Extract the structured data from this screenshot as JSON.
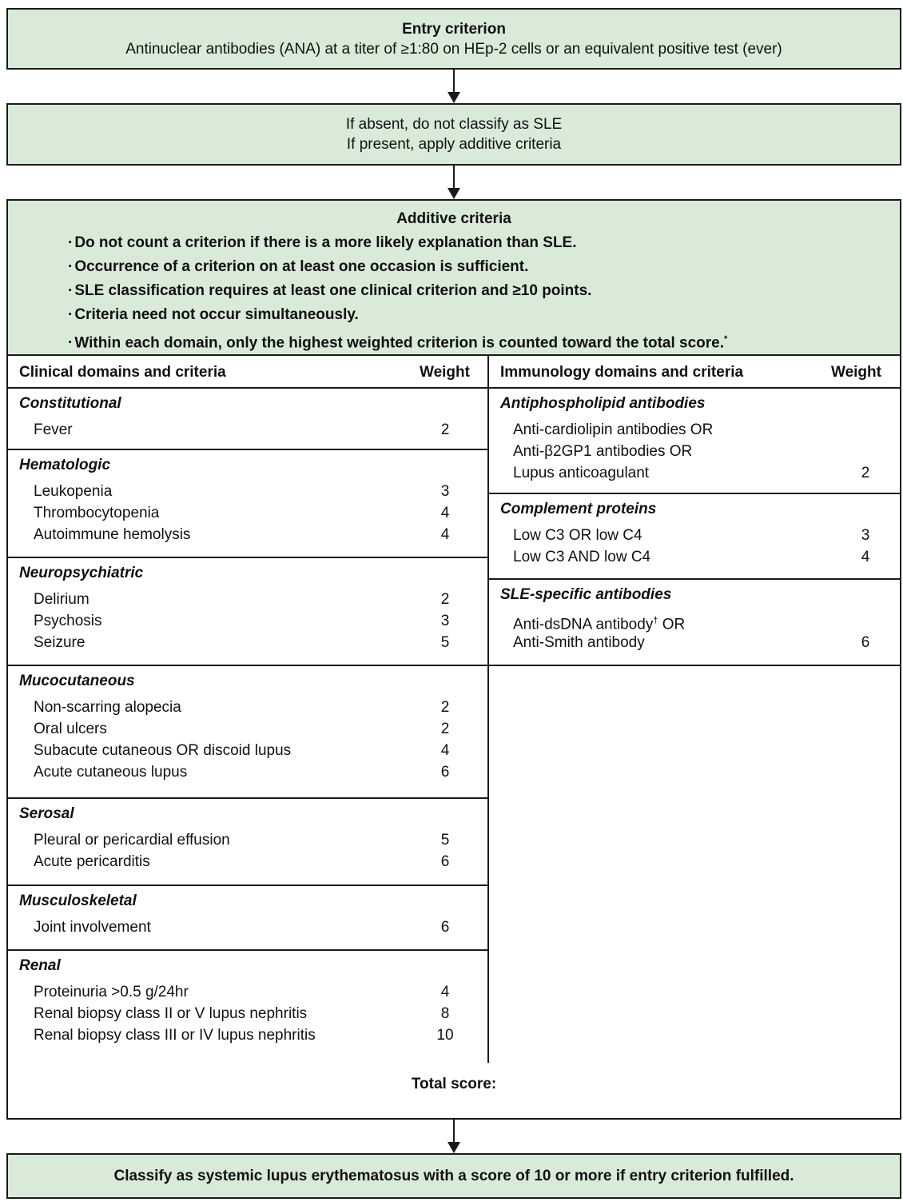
{
  "entry": {
    "title": "Entry criterion",
    "text": "Antinuclear antibodies (ANA) at a titer of ≥1:80 on HEp-2 cells or an equivalent positive test (ever)"
  },
  "gate": {
    "line1": "If absent, do not classify as SLE",
    "line2": "If present, apply additive criteria"
  },
  "additive": {
    "title": "Additive criteria",
    "bullets": [
      "Do not count a criterion if there is a more likely explanation than SLE.",
      "Occurrence of a criterion on at least one occasion is sufficient.",
      "SLE classification requires at least one clinical criterion and ≥10 points.",
      "Criteria need not occur simultaneously.",
      "Within each domain, only the highest weighted criterion is counted toward the total score."
    ],
    "footnote_mark": "*"
  },
  "table": {
    "clinical_header": "Clinical domains and criteria",
    "immunology_header": "Immunology domains and criteria",
    "weight_header": "Weight",
    "clinical": [
      {
        "domain": "Constitutional",
        "criteria": [
          {
            "name": "Fever",
            "weight": "2"
          }
        ]
      },
      {
        "domain": "Hematologic",
        "criteria": [
          {
            "name": "Leukopenia",
            "weight": "3"
          },
          {
            "name": "Thrombocytopenia",
            "weight": "4"
          },
          {
            "name": "Autoimmune hemolysis",
            "weight": "4"
          }
        ]
      },
      {
        "domain": "Neuropsychiatric",
        "criteria": [
          {
            "name": "Delirium",
            "weight": "2"
          },
          {
            "name": "Psychosis",
            "weight": "3"
          },
          {
            "name": "Seizure",
            "weight": "5"
          }
        ]
      },
      {
        "domain": "Mucocutaneous",
        "criteria": [
          {
            "name": "Non-scarring alopecia",
            "weight": "2"
          },
          {
            "name": "Oral ulcers",
            "weight": "2"
          },
          {
            "name": "Subacute cutaneous OR discoid lupus",
            "weight": "4"
          },
          {
            "name": "Acute cutaneous lupus",
            "weight": "6"
          }
        ]
      },
      {
        "domain": "Serosal",
        "criteria": [
          {
            "name": "Pleural or pericardial effusion",
            "weight": "5"
          },
          {
            "name": "Acute pericarditis",
            "weight": "6"
          }
        ]
      },
      {
        "domain": "Musculoskeletal",
        "criteria": [
          {
            "name": "Joint involvement",
            "weight": "6"
          }
        ]
      },
      {
        "domain": "Renal",
        "criteria": [
          {
            "name": "Proteinuria >0.5 g/24hr",
            "weight": "4"
          },
          {
            "name": "Renal biopsy class II or V lupus nephritis",
            "weight": "8"
          },
          {
            "name": "Renal biopsy class III or IV lupus nephritis",
            "weight": "10"
          }
        ]
      }
    ],
    "immunology": [
      {
        "domain": "Antiphospholipid antibodies",
        "criteria": [
          {
            "name": "Anti-cardiolipin antibodies OR",
            "weight": ""
          },
          {
            "name": "Anti-β2GP1 antibodies OR",
            "weight": ""
          },
          {
            "name": "Lupus anticoagulant",
            "weight": "2"
          }
        ]
      },
      {
        "domain": "Complement proteins",
        "criteria": [
          {
            "name": "Low C3 OR low C4",
            "weight": "3"
          },
          {
            "name": "Low C3 AND low C4",
            "weight": "4"
          }
        ]
      },
      {
        "domain": "SLE-specific antibodies",
        "criteria": [
          {
            "name": "Anti-dsDNA antibody",
            "sup": "†",
            "suffix": " OR",
            "weight": ""
          },
          {
            "name": "Anti-Smith antibody",
            "weight": "6"
          }
        ]
      }
    ]
  },
  "total": {
    "label": "Total score:"
  },
  "conclusion": {
    "text": "Classify as systemic lupus erythematosus with a score of 10 or more if entry criterion fulfilled."
  }
}
